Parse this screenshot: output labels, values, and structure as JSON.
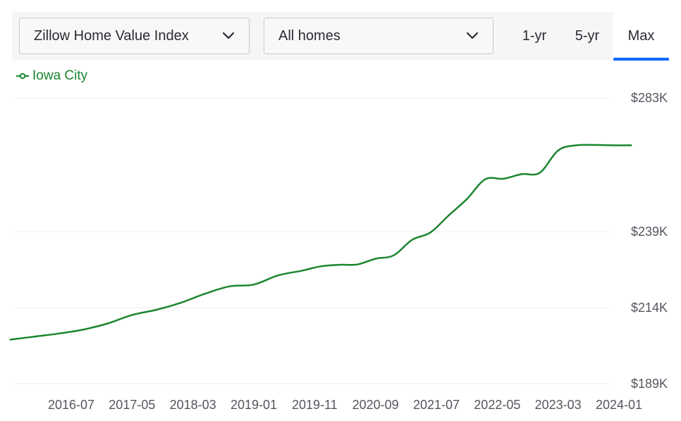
{
  "controls": {
    "metric_dropdown": "Zillow Home Value Index",
    "home_type_dropdown": "All homes",
    "range_tabs": [
      "1-yr",
      "5-yr",
      "Max"
    ],
    "active_range": "Max"
  },
  "colors": {
    "series": "#1b862f",
    "accent": "#006aff",
    "grid": "#ececec"
  },
  "chart_data": {
    "type": "line",
    "title": "",
    "xlabel": "",
    "ylabel": "",
    "legend": "top-left",
    "grid": true,
    "ylim": [
      189,
      283
    ],
    "y_ticks": [
      189,
      214,
      239,
      283
    ],
    "y_tick_labels": [
      "$189K",
      "$214K",
      "$239K",
      "$283K"
    ],
    "x_tick_labels": [
      "2016-07",
      "2017-05",
      "2018-03",
      "2019-01",
      "2019-11",
      "2020-09",
      "2021-07",
      "2022-05",
      "2023-03",
      "2024-01"
    ],
    "series": [
      {
        "name": "Iowa City",
        "color": "#1b862f",
        "x": [
          "2015-09",
          "2016-01",
          "2016-05",
          "2016-09",
          "2017-01",
          "2017-05",
          "2017-09",
          "2018-01",
          "2018-05",
          "2018-09",
          "2019-01",
          "2019-05",
          "2019-09",
          "2019-12",
          "2020-03",
          "2020-06",
          "2020-09",
          "2020-12",
          "2021-03",
          "2021-06",
          "2021-09",
          "2021-12",
          "2022-03",
          "2022-06",
          "2022-09",
          "2022-12",
          "2023-03",
          "2023-06",
          "2023-09",
          "2023-12",
          "2024-03"
        ],
        "values": [
          203.5,
          204.5,
          205.5,
          206.8,
          208.8,
          211.6,
          213.3,
          215.6,
          218.6,
          221.0,
          221.6,
          224.6,
          226.2,
          227.6,
          228.1,
          228.2,
          230.1,
          231.2,
          236.3,
          238.7,
          244.3,
          249.7,
          256.2,
          256.4,
          257.9,
          258.4,
          265.7,
          267.4,
          267.5,
          267.4,
          267.4
        ]
      }
    ]
  }
}
